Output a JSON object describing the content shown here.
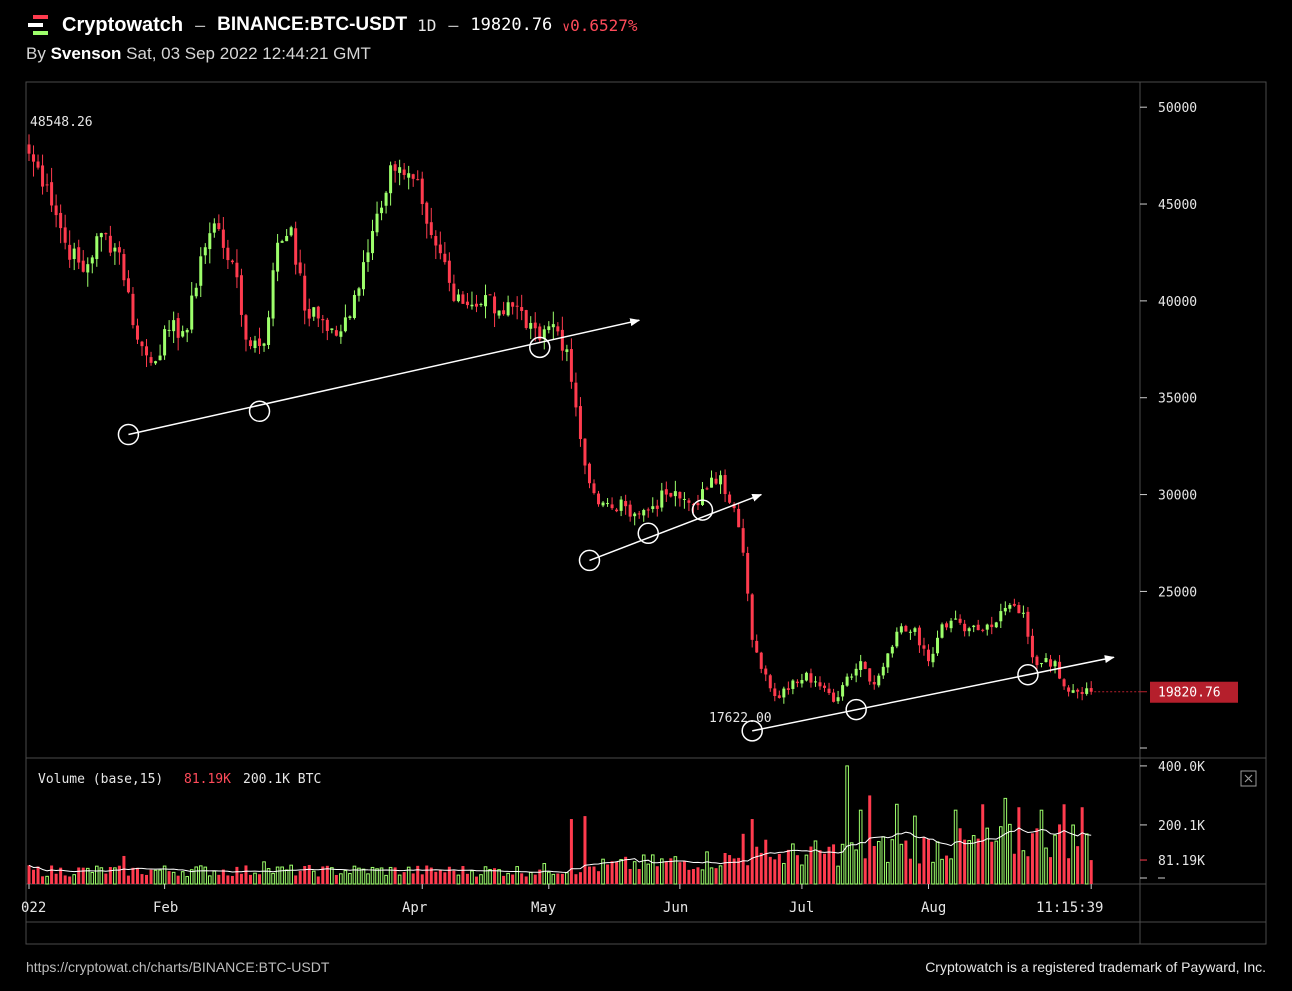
{
  "header": {
    "brand": "Cryptowatch",
    "separator": "–",
    "pair": "BINANCE:BTC-USDT",
    "interval": "1D",
    "price": "19820.76",
    "change_arrow": "∨",
    "change_pct": "0.6527%",
    "byline_prefix": "By",
    "author": "Svenson",
    "timestamp": "Sat, 03 Sep 2022 12:44:21 GMT",
    "logo_icon": "cryptowatch-logo-icon"
  },
  "footer": {
    "url": "https://cryptowat.ch/charts/BINANCE:BTC-USDT",
    "trademark": "Cryptowatch is a registered trademark of Payward, Inc."
  },
  "colors": {
    "background": "#000000",
    "up": "#9dff6b",
    "down": "#ff3b4e",
    "annotation": "#ffffff",
    "grid_border": "#4a4a4a",
    "price_tag_bg": "#b51f2c"
  },
  "chart_data": {
    "type": "candlestick",
    "interval": "1D",
    "y_ticks": [
      50000,
      45000,
      40000,
      35000,
      30000,
      25000
    ],
    "ylim": [
      16400,
      51300
    ],
    "high_label": "48548.26",
    "low_label": "17622.00",
    "last_price_label": "19820.76",
    "x_ticks": [
      "022",
      "Feb",
      "Apr",
      "May",
      "Jun",
      "Jul",
      "Aug",
      "11:15:39"
    ],
    "anchors": [
      [
        0,
        47600
      ],
      [
        4,
        46000
      ],
      [
        8,
        43000
      ],
      [
        12,
        41500
      ],
      [
        16,
        43500
      ],
      [
        20,
        42500
      ],
      [
        24,
        38000
      ],
      [
        27,
        36800
      ],
      [
        31,
        38500
      ],
      [
        35,
        38500
      ],
      [
        38,
        42300
      ],
      [
        41,
        44000
      ],
      [
        45,
        42000
      ],
      [
        48,
        38000
      ],
      [
        52,
        37800
      ],
      [
        55,
        43000
      ],
      [
        58,
        43800
      ],
      [
        61,
        39500
      ],
      [
        65,
        39000
      ],
      [
        68,
        38200
      ],
      [
        71,
        39200
      ],
      [
        74,
        42000
      ],
      [
        77,
        44500
      ],
      [
        80,
        47000
      ],
      [
        83,
        46500
      ],
      [
        85,
        46300
      ],
      [
        87,
        45000
      ],
      [
        89,
        43400
      ],
      [
        92,
        42000
      ],
      [
        94,
        40000
      ],
      [
        98,
        39800
      ],
      [
        101,
        40300
      ],
      [
        104,
        39500
      ],
      [
        107,
        39700
      ],
      [
        110,
        38600
      ],
      [
        113,
        38000
      ],
      [
        116,
        38800
      ],
      [
        119,
        37500
      ],
      [
        121,
        34500
      ],
      [
        123,
        31500
      ],
      [
        126,
        29500
      ],
      [
        129,
        29300
      ],
      [
        132,
        29400
      ],
      [
        135,
        29000
      ],
      [
        138,
        29400
      ],
      [
        141,
        30000
      ],
      [
        144,
        29800
      ],
      [
        147,
        29500
      ],
      [
        150,
        30300
      ],
      [
        153,
        31000
      ],
      [
        156,
        29300
      ],
      [
        158,
        27000
      ],
      [
        160,
        22500
      ],
      [
        162,
        21000
      ],
      [
        164,
        20000
      ],
      [
        166,
        19500
      ],
      [
        169,
        20400
      ],
      [
        172,
        20800
      ],
      [
        175,
        20100
      ],
      [
        178,
        19300
      ],
      [
        181,
        20600
      ],
      [
        184,
        21400
      ],
      [
        187,
        20200
      ],
      [
        190,
        21800
      ],
      [
        193,
        23200
      ],
      [
        196,
        23100
      ],
      [
        199,
        21400
      ],
      [
        202,
        23300
      ],
      [
        205,
        23600
      ],
      [
        208,
        23100
      ],
      [
        211,
        23000
      ],
      [
        214,
        23400
      ],
      [
        217,
        24300
      ],
      [
        220,
        23900
      ],
      [
        222,
        21600
      ],
      [
        224,
        21300
      ],
      [
        227,
        21400
      ],
      [
        229,
        20100
      ],
      [
        231,
        19900
      ],
      [
        234,
        20000
      ],
      [
        235,
        19820
      ]
    ],
    "annotations": {
      "circles": [
        [
          22,
          33100
        ],
        [
          51,
          34300
        ],
        [
          113,
          37600
        ],
        [
          124,
          26600
        ],
        [
          137,
          28000
        ],
        [
          149,
          29200
        ],
        [
          160,
          17800
        ],
        [
          183,
          18900
        ],
        [
          221,
          20700
        ]
      ],
      "arrows": [
        [
          [
            22,
            33100
          ],
          [
            135,
            39000
          ]
        ],
        [
          [
            124,
            26600
          ],
          [
            162,
            30000
          ]
        ],
        [
          [
            160,
            17800
          ],
          [
            240,
            21600
          ]
        ]
      ]
    },
    "volume": {
      "label": "Volume (base,15)",
      "current_value": "81.19K",
      "reference_value": "200.1K BTC",
      "y_ticks": [
        "400.0K",
        "200.1K",
        "81.19K"
      ],
      "ylim": [
        0,
        420
      ],
      "base_value": 45,
      "spikes": [
        [
          21,
          95
        ],
        [
          52,
          75
        ],
        [
          120,
          220
        ],
        [
          123,
          230
        ],
        [
          158,
          170
        ],
        [
          160,
          220
        ],
        [
          163,
          150
        ],
        [
          181,
          400
        ],
        [
          184,
          250
        ],
        [
          186,
          300
        ],
        [
          192,
          270
        ],
        [
          196,
          230
        ],
        [
          205,
          250
        ],
        [
          211,
          270
        ],
        [
          216,
          290
        ],
        [
          219,
          260
        ],
        [
          224,
          250
        ],
        [
          229,
          270
        ],
        [
          233,
          260
        ],
        [
          235,
          81
        ]
      ]
    }
  }
}
